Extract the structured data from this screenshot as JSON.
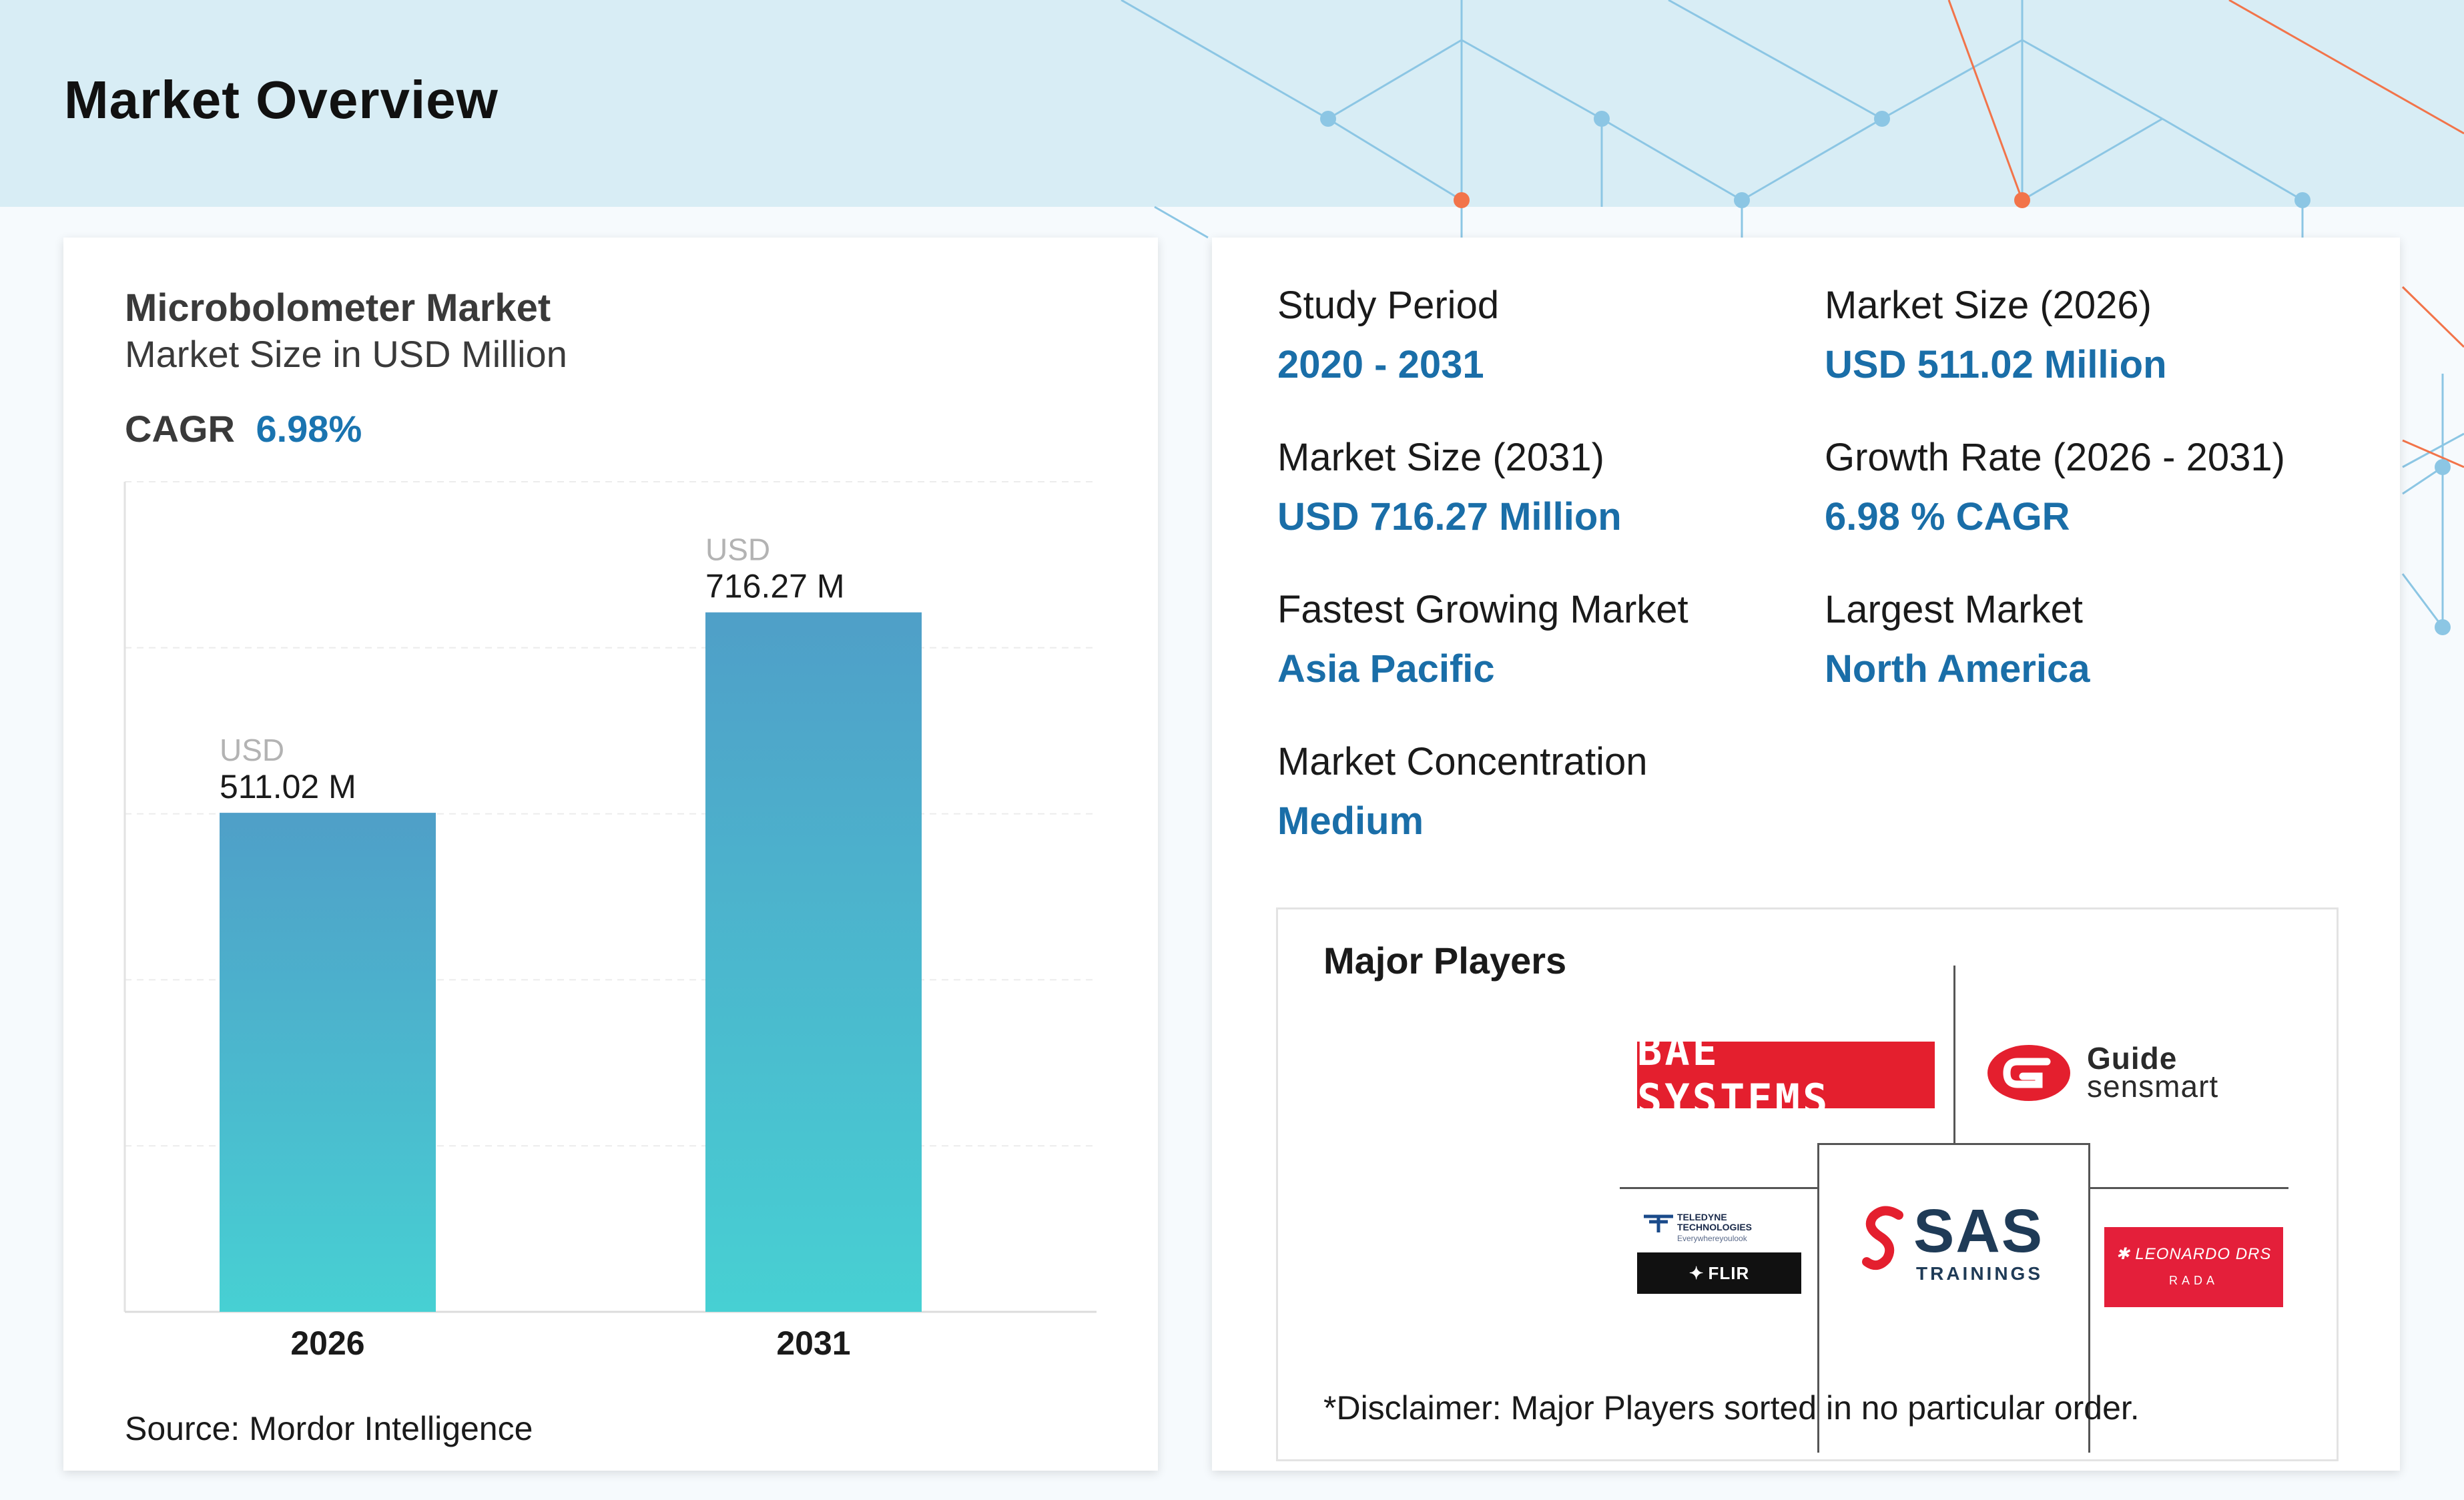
{
  "page_title": "Market Overview",
  "chart_data": {
    "type": "bar",
    "title": "Microbolometer Market",
    "subtitle": "Market Size in USD Million",
    "cagr_label": "CAGR",
    "cagr_value": "6.98%",
    "categories": [
      "2026",
      "2031"
    ],
    "values": [
      511.02,
      716.27
    ],
    "data_labels": [
      {
        "unit": "USD",
        "text": "511.02 M"
      },
      {
        "unit": "USD",
        "text": "716.27 M"
      }
    ],
    "ylim": [
      0,
      850
    ],
    "grid": true,
    "bar_color_top": "#4f9fc8",
    "bar_color_bottom": "#47d0d3",
    "source": "Source: Mordor Intelligence"
  },
  "stats": [
    {
      "label": "Study Period",
      "value": "2020 - 2031"
    },
    {
      "label": "Market Size (2026)",
      "value": "USD 511.02 Million"
    },
    {
      "label": "Market Size (2031)",
      "value": "USD 716.27 Million"
    },
    {
      "label": "Growth Rate (2026 - 2031)",
      "value": "6.98 % CAGR"
    },
    {
      "label": "Fastest Growing Market",
      "value": "Asia Pacific"
    },
    {
      "label": "Largest Market",
      "value": "North America"
    },
    {
      "label": "Market Concentration",
      "value": "Medium"
    }
  ],
  "players": {
    "title": "Major Players",
    "bae": "BAE SYSTEMS",
    "guide_line1": "Guide",
    "guide_line2": "sensmart",
    "teledyne_line1": "TELEDYNE",
    "teledyne_line2": "TECHNOLOGIES",
    "teledyne_tagline": "Everywhereyoulook",
    "flir": "FLIR",
    "sas_main": "SAS",
    "sas_sub": "TRAININGS",
    "leonardo_main": "LEONARDO DRS",
    "leonardo_sub": "RADA",
    "disclaimer": "*Disclaimer: Major Players sorted in no particular order."
  },
  "colors": {
    "header_band": "#d8edf5",
    "accent_blue": "#1a6ea8",
    "pattern_blue": "#8cc6e4",
    "pattern_orange": "#f2744a",
    "bae_red": "#e41f2e",
    "leonardo_red": "#e41f3a"
  }
}
